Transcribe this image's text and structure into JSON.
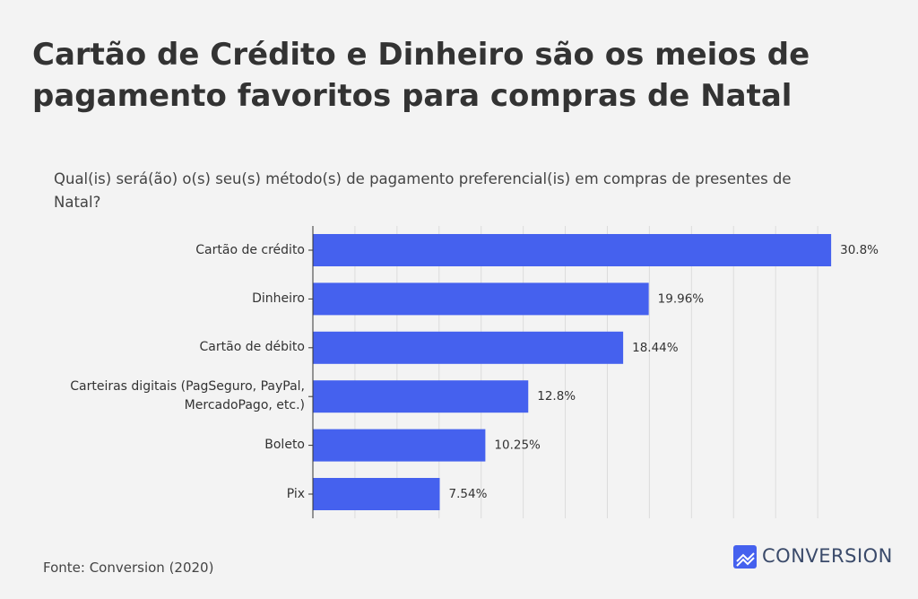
{
  "chart_data": {
    "type": "bar",
    "orientation": "horizontal",
    "title": "Cartão de Crédito e Dinheiro são os meios de pagamento favoritos para compras de Natal",
    "subtitle": "Qual(is) será(ão) o(s) seu(s) método(s) de pagamento preferencial(is) em compras de presentes de Natal?",
    "categories": [
      "Cartão de crédito",
      "Dinheiro",
      "Cartão de débito",
      "Carteiras digitais (PagSeguro, PayPal, MercadoPago, etc.)",
      "Boleto",
      "Pix"
    ],
    "values": [
      30.8,
      19.96,
      18.44,
      12.8,
      10.25,
      7.54
    ],
    "value_labels": [
      "30.8%",
      "19.96%",
      "18.44%",
      "12.8%",
      "10.25%",
      "7.54%"
    ],
    "color": "#4561ee",
    "xlim": [
      0,
      32.5
    ],
    "xticks": [
      2.5,
      5,
      7.5,
      10,
      12.5,
      15,
      17.5,
      20,
      22.5,
      25,
      27.5,
      30
    ],
    "grid": true,
    "source": "Fonte: Conversion (2020)",
    "brand": "CONVERSION"
  }
}
